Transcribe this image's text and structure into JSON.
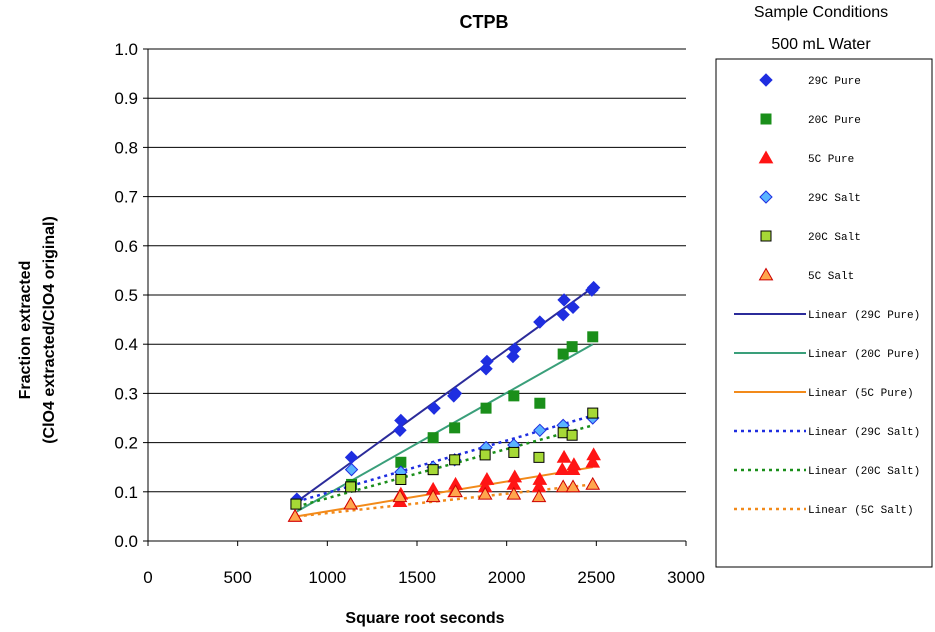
{
  "chart_data": {
    "type": "scatter",
    "title": "CTPB",
    "xlabel": "Square root seconds",
    "ylabel_line1": "Fraction extracted",
    "ylabel_line2": "(ClO4 extracted/ClO4 original)",
    "xlim": [
      0,
      3000
    ],
    "ylim": [
      0.0,
      1.0
    ],
    "x_ticks": [
      "0",
      "500",
      "1000",
      "1500",
      "2000",
      "2500",
      "3000"
    ],
    "x_tick_values": [
      0,
      500,
      1000,
      1500,
      2000,
      2500,
      3000
    ],
    "y_ticks": [
      "0.0",
      "0.1",
      "0.2",
      "0.3",
      "0.4",
      "0.5",
      "0.6",
      "0.7",
      "0.8",
      "0.9",
      "1.0"
    ],
    "y_tick_values": [
      0.0,
      0.1,
      0.2,
      0.3,
      0.4,
      0.5,
      0.6,
      0.7,
      0.8,
      0.9,
      1.0
    ],
    "grid": "horizontal",
    "legend_placement": "right",
    "legend_title_line1": "Sample Conditions",
    "legend_title_line2": "500 mL Water",
    "series": [
      {
        "name": "29C Pure",
        "marker": "diamond",
        "fill": "#1f2ee0",
        "stroke": "#1f2ee0",
        "x": [
          830,
          1135,
          1405,
          1410,
          1595,
          1705,
          1715,
          1885,
          1890,
          2035,
          2045,
          2185,
          2315,
          2320,
          2370,
          2475,
          2485
        ],
        "y": [
          0.085,
          0.17,
          0.225,
          0.245,
          0.27,
          0.295,
          0.3,
          0.35,
          0.365,
          0.375,
          0.39,
          0.445,
          0.46,
          0.49,
          0.475,
          0.51,
          0.515
        ]
      },
      {
        "name": "20C Pure",
        "marker": "square",
        "fill": "#1a8f1a",
        "stroke": "#1a8f1a",
        "x": [
          825,
          1135,
          1410,
          1590,
          1710,
          1885,
          2040,
          2185,
          2315,
          2365,
          2480
        ],
        "y": [
          0.075,
          0.115,
          0.16,
          0.21,
          0.23,
          0.27,
          0.295,
          0.28,
          0.38,
          0.395,
          0.415
        ]
      },
      {
        "name": "5C Pure",
        "marker": "triangle",
        "fill": "#ff1515",
        "stroke": "#ff1515",
        "x": [
          820,
          1130,
          1405,
          1410,
          1590,
          1710,
          1715,
          1880,
          1890,
          2040,
          2045,
          2180,
          2185,
          2310,
          2320,
          2370,
          2375,
          2480,
          2485
        ],
        "y": [
          0.05,
          0.075,
          0.08,
          0.095,
          0.105,
          0.1,
          0.115,
          0.11,
          0.125,
          0.115,
          0.13,
          0.11,
          0.125,
          0.145,
          0.17,
          0.145,
          0.155,
          0.16,
          0.175
        ]
      },
      {
        "name": "29C Salt",
        "marker": "diamond",
        "fill": "#5ab4ff",
        "stroke": "#1f2ee0",
        "x": [
          1135,
          1410,
          1590,
          1710,
          1885,
          2040,
          2185,
          2315,
          2480
        ],
        "y": [
          0.145,
          0.14,
          0.15,
          0.165,
          0.19,
          0.195,
          0.225,
          0.235,
          0.25
        ]
      },
      {
        "name": "20C Salt",
        "marker": "square",
        "fill": "#a6d936",
        "stroke": "#000000",
        "x": [
          825,
          1130,
          1410,
          1590,
          1710,
          1880,
          2040,
          2180,
          2315,
          2365,
          2480
        ],
        "y": [
          0.075,
          0.11,
          0.125,
          0.145,
          0.165,
          0.175,
          0.18,
          0.17,
          0.22,
          0.215,
          0.26
        ]
      },
      {
        "name": "5C Salt",
        "marker": "triangle",
        "fill": "#ffa64d",
        "stroke": "#cc0000",
        "x": [
          820,
          1130,
          1405,
          1590,
          1715,
          1880,
          2040,
          2180,
          2315,
          2370,
          2480
        ],
        "y": [
          0.05,
          0.075,
          0.09,
          0.09,
          0.1,
          0.095,
          0.095,
          0.09,
          0.11,
          0.11,
          0.115
        ]
      }
    ],
    "trendlines": [
      {
        "name": "Linear (29C Pure)",
        "style": "solid",
        "color": "#2b2b9a",
        "x": [
          830,
          2480
        ],
        "y": [
          0.08,
          0.515
        ]
      },
      {
        "name": "Linear (20C Pure)",
        "style": "solid",
        "color": "#3a9f7a",
        "x": [
          830,
          2480
        ],
        "y": [
          0.06,
          0.4
        ]
      },
      {
        "name": "Linear (5C Pure)",
        "style": "solid",
        "color": "#f28a1a",
        "x": [
          830,
          2480
        ],
        "y": [
          0.05,
          0.15
        ]
      },
      {
        "name": "Linear (29C Salt)",
        "style": "dotted",
        "color": "#1f2ee0",
        "x": [
          830,
          2480
        ],
        "y": [
          0.08,
          0.255
        ]
      },
      {
        "name": "Linear (20C Salt)",
        "style": "dotted",
        "color": "#1a8f1a",
        "x": [
          830,
          2480
        ],
        "y": [
          0.07,
          0.235
        ]
      },
      {
        "name": "Linear (5C Salt)",
        "style": "dotted",
        "color": "#f28a1a",
        "x": [
          830,
          2480
        ],
        "y": [
          0.05,
          0.115
        ]
      }
    ]
  }
}
